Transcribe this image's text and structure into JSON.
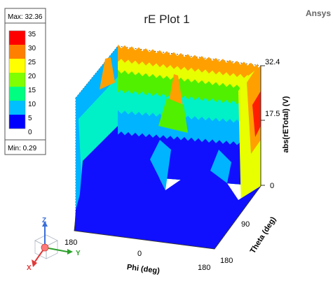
{
  "plot": {
    "title": "rE Plot 1",
    "brand": "Ansys"
  },
  "legend": {
    "max_label": "Max: 32.36",
    "min_label": "Min: 0.29",
    "levels": [
      {
        "label": "35",
        "color": "#ff0000"
      },
      {
        "label": "30",
        "color": "#ff8000"
      },
      {
        "label": "25",
        "color": "#ffff00"
      },
      {
        "label": "20",
        "color": "#80ff00"
      },
      {
        "label": "15",
        "color": "#00ff80"
      },
      {
        "label": "10",
        "color": "#00c0ff"
      },
      {
        "label": "5",
        "color": "#0000ff"
      },
      {
        "label": "0",
        "color": ""
      }
    ]
  },
  "axes": {
    "z_label": "abs(rETotal) (V)",
    "z_ticks": [
      "32.4",
      "17.5",
      "0"
    ],
    "phi_label": "Phi (deg)",
    "phi_ticks": [
      "180",
      "0",
      "180"
    ],
    "theta_label": "Theta (deg)",
    "theta_ticks": [
      "90",
      "180"
    ]
  },
  "triad": {
    "x_label": "X",
    "y_label": "Y",
    "z_label": "Z"
  },
  "colors": {
    "blue": "#1010ff",
    "cyan": "#00b4ff",
    "aqua": "#00f0c8",
    "green": "#50f000",
    "yellow": "#e8ff00",
    "orange": "#ffa000",
    "red": "#ff1e00"
  }
}
